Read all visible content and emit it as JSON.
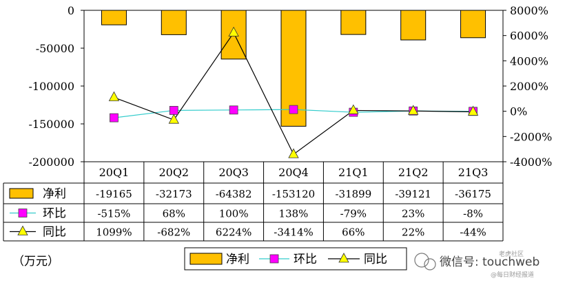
{
  "chart_data": {
    "type": "bar",
    "categories": [
      "20Q1",
      "20Q2",
      "20Q3",
      "20Q4",
      "21Q1",
      "21Q2",
      "21Q3"
    ],
    "series": [
      {
        "name": "净利",
        "type": "bar",
        "axis": "left",
        "values": [
          -19165,
          -32173,
          -64382,
          -153120,
          -31899,
          -39121,
          -36175
        ],
        "labels": [
          "-19165",
          "-32173",
          "-64382",
          "-153120",
          "-31899",
          "-39121",
          "-36175"
        ]
      },
      {
        "name": "环比",
        "type": "line",
        "axis": "right",
        "values": [
          -515,
          68,
          100,
          138,
          -79,
          23,
          -8
        ],
        "labels": [
          "-515%",
          "68%",
          "100%",
          "138%",
          "-79%",
          "23%",
          "-8%"
        ]
      },
      {
        "name": "同比",
        "type": "line",
        "axis": "right",
        "values": [
          1099,
          -682,
          6224,
          -3414,
          66,
          22,
          -44
        ],
        "labels": [
          "1099%",
          "-682%",
          "6224%",
          "-3414%",
          "66%",
          "22%",
          "-44%"
        ]
      }
    ],
    "left_axis": {
      "ylim": [
        -200000,
        0
      ],
      "ticks": [
        "0",
        "-50000",
        "-100000",
        "-150000",
        "-200000"
      ]
    },
    "right_axis": {
      "ylim": [
        -4000,
        8000
      ],
      "ticks": [
        "8000%",
        "6000%",
        "4000%",
        "2000%",
        "0%",
        "-2000%",
        "-4000%"
      ]
    },
    "unit_note": "（万元）",
    "legend": [
      "净利",
      "环比",
      "同比"
    ],
    "colors": {
      "bar": "#FFC000",
      "bar_edge": "#000000",
      "mom_line": "#33CCCC",
      "mom_marker": "#FF00FF",
      "yoy_line": "#000000",
      "yoy_marker": "#FFFF00"
    }
  },
  "watermark": {
    "text": "微信号: touchweb",
    "logo_text": "老虎社区",
    "sub_text": "@每日财经报道"
  }
}
